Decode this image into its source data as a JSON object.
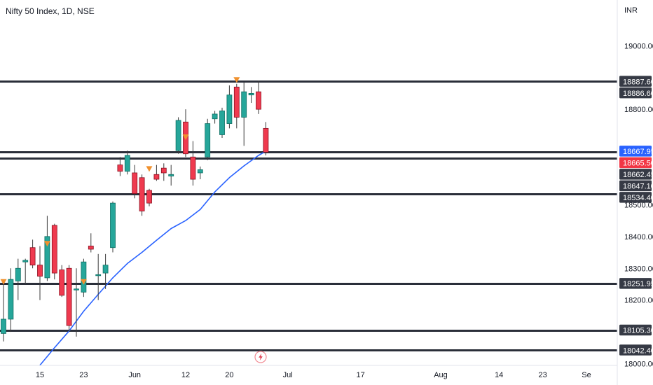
{
  "header": {
    "title": "Nifty 50 Index, 1D, NSE"
  },
  "axis": {
    "currency": "INR"
  },
  "colors": {
    "up": "#26a69a",
    "up_dark": "#0d6f63",
    "down": "#ef3a4f",
    "down_dark": "#8a1020",
    "ma": "#2962ff",
    "level": "#2a2e39",
    "marker": "#f0912e",
    "tag_bg": "#363a45",
    "tag_blue": "#2962ff",
    "tag_red": "#f23645",
    "grid": "#e0e3eb"
  },
  "chart_data": {
    "type": "candlestick",
    "instrument": "Nifty 50 Index",
    "interval": "1D",
    "exchange": "NSE",
    "ylim": [
      17988,
      19060
    ],
    "x_ticks": [
      {
        "label": "15",
        "idx": 5
      },
      {
        "label": "23",
        "idx": 11
      },
      {
        "label": "Jun",
        "idx": 18
      },
      {
        "label": "12",
        "idx": 25
      },
      {
        "label": "20",
        "idx": 31
      },
      {
        "label": "Jul",
        "idx": 39
      },
      {
        "label": "17",
        "idx": 49
      },
      {
        "label": "Aug",
        "idx": 60
      },
      {
        "label": "14",
        "idx": 68
      },
      {
        "label": "23",
        "idx": 74
      },
      {
        "label": "Se",
        "idx": 80
      }
    ],
    "y_ticks": [
      19000,
      18800,
      18500,
      18400,
      18300,
      18200,
      18000
    ],
    "price_tags": [
      {
        "value": 18887.6,
        "label": "18887.60",
        "style": "dark"
      },
      {
        "value": 18886.6,
        "label": "18886.60",
        "style": "dark"
      },
      {
        "value": 18667.95,
        "label": "18667.95",
        "style": "blue"
      },
      {
        "value": 18665.5,
        "label": "18665.50",
        "style": "red"
      },
      {
        "value": 18662.45,
        "label": "18662.45",
        "style": "dark"
      },
      {
        "value": 18647.1,
        "label": "18647.10",
        "style": "dark"
      },
      {
        "value": 18534.4,
        "label": "18534.40",
        "style": "dark"
      },
      {
        "value": 18251.95,
        "label": "18251.95",
        "style": "dark"
      },
      {
        "value": 18105.3,
        "label": "18105.30",
        "style": "dark"
      },
      {
        "value": 18042.4,
        "label": "18042.40",
        "style": "dark"
      }
    ],
    "levels": [
      18887.6,
      18665.5,
      18647.1,
      18534.4,
      18251.95,
      18105.3,
      18042.4
    ],
    "candles": [
      {
        "idx": 0,
        "open": 18095,
        "high": 18255,
        "low": 18070,
        "close": 18140
      },
      {
        "idx": 1,
        "open": 18140,
        "high": 18300,
        "low": 18100,
        "close": 18265
      },
      {
        "idx": 2,
        "open": 18260,
        "high": 18330,
        "low": 18200,
        "close": 18300
      },
      {
        "idx": 3,
        "open": 18320,
        "high": 18330,
        "low": 18250,
        "close": 18325
      },
      {
        "idx": 4,
        "open": 18365,
        "high": 18390,
        "low": 18300,
        "close": 18310
      },
      {
        "idx": 5,
        "open": 18310,
        "high": 18370,
        "low": 18200,
        "close": 18275
      },
      {
        "idx": 6,
        "open": 18270,
        "high": 18465,
        "low": 18260,
        "close": 18400
      },
      {
        "idx": 7,
        "open": 18435,
        "high": 18440,
        "low": 18265,
        "close": 18285
      },
      {
        "idx": 8,
        "open": 18295,
        "high": 18310,
        "low": 18210,
        "close": 18215
      },
      {
        "idx": 9,
        "open": 18300,
        "high": 18310,
        "low": 18100,
        "close": 18120
      },
      {
        "idx": 10,
        "open": 18235,
        "high": 18300,
        "low": 18085,
        "close": 18235
      },
      {
        "idx": 11,
        "open": 18225,
        "high": 18330,
        "low": 18210,
        "close": 18320
      },
      {
        "idx": 12,
        "open": 18370,
        "high": 18410,
        "low": 18350,
        "close": 18360
      },
      {
        "idx": 13,
        "open": 18280,
        "high": 18345,
        "low": 18200,
        "close": 18280
      },
      {
        "idx": 14,
        "open": 18285,
        "high": 18345,
        "low": 18235,
        "close": 18310
      },
      {
        "idx": 15,
        "open": 18365,
        "high": 18510,
        "low": 18350,
        "close": 18505
      },
      {
        "idx": 16,
        "open": 18625,
        "high": 18650,
        "low": 18590,
        "close": 18605
      },
      {
        "idx": 17,
        "open": 18605,
        "high": 18670,
        "low": 18595,
        "close": 18655
      },
      {
        "idx": 18,
        "open": 18600,
        "high": 18625,
        "low": 18520,
        "close": 18535
      },
      {
        "idx": 19,
        "open": 18585,
        "high": 18595,
        "low": 18465,
        "close": 18480
      },
      {
        "idx": 20,
        "open": 18545,
        "high": 18550,
        "low": 18495,
        "close": 18505
      },
      {
        "idx": 21,
        "open": 18595,
        "high": 18625,
        "low": 18575,
        "close": 18580
      },
      {
        "idx": 22,
        "open": 18615,
        "high": 18630,
        "low": 18575,
        "close": 18600
      },
      {
        "idx": 23,
        "open": 18590,
        "high": 18625,
        "low": 18560,
        "close": 18595
      },
      {
        "idx": 24,
        "open": 18670,
        "high": 18775,
        "low": 18660,
        "close": 18765
      },
      {
        "idx": 25,
        "open": 18760,
        "high": 18800,
        "low": 18650,
        "close": 18660
      },
      {
        "idx": 26,
        "open": 18650,
        "high": 18700,
        "low": 18560,
        "close": 18580
      },
      {
        "idx": 27,
        "open": 18600,
        "high": 18620,
        "low": 18580,
        "close": 18610
      },
      {
        "idx": 28,
        "open": 18650,
        "high": 18770,
        "low": 18640,
        "close": 18755
      },
      {
        "idx": 29,
        "open": 18770,
        "high": 18795,
        "low": 18755,
        "close": 18785
      },
      {
        "idx": 30,
        "open": 18720,
        "high": 18805,
        "low": 18710,
        "close": 18795
      },
      {
        "idx": 31,
        "open": 18755,
        "high": 18875,
        "low": 18740,
        "close": 18845
      },
      {
        "idx": 32,
        "open": 18870,
        "high": 18880,
        "low": 18740,
        "close": 18775
      },
      {
        "idx": 33,
        "open": 18775,
        "high": 18885,
        "low": 18685,
        "close": 18855
      },
      {
        "idx": 34,
        "open": 18845,
        "high": 18870,
        "low": 18820,
        "close": 18850
      },
      {
        "idx": 35,
        "open": 18855,
        "high": 18890,
        "low": 18785,
        "close": 18800
      },
      {
        "idx": 36,
        "open": 18740,
        "high": 18760,
        "low": 18655,
        "close": 18665
      }
    ],
    "moving_average": [
      {
        "idx": 5.0,
        "value": 17995
      },
      {
        "idx": 7.0,
        "value": 18050
      },
      {
        "idx": 9.0,
        "value": 18103
      },
      {
        "idx": 11.0,
        "value": 18165
      },
      {
        "idx": 13.0,
        "value": 18218
      },
      {
        "idx": 15.0,
        "value": 18270
      },
      {
        "idx": 17.0,
        "value": 18315
      },
      {
        "idx": 19.0,
        "value": 18350
      },
      {
        "idx": 21.0,
        "value": 18388
      },
      {
        "idx": 23.0,
        "value": 18425
      },
      {
        "idx": 25.0,
        "value": 18450
      },
      {
        "idx": 27.0,
        "value": 18485
      },
      {
        "idx": 29.0,
        "value": 18540
      },
      {
        "idx": 31.0,
        "value": 18585
      },
      {
        "idx": 33.0,
        "value": 18622
      },
      {
        "idx": 35.0,
        "value": 18655
      },
      {
        "idx": 36.0,
        "value": 18668
      }
    ],
    "markers": [
      {
        "idx": 0,
        "value": 18255
      },
      {
        "idx": 6,
        "value": 18375
      },
      {
        "idx": 11,
        "value": 18255
      },
      {
        "idx": 20,
        "value": 18610
      },
      {
        "idx": 25,
        "value": 18710
      },
      {
        "idx": 32,
        "value": 18890
      }
    ],
    "event_icon_idx": 35.5
  }
}
